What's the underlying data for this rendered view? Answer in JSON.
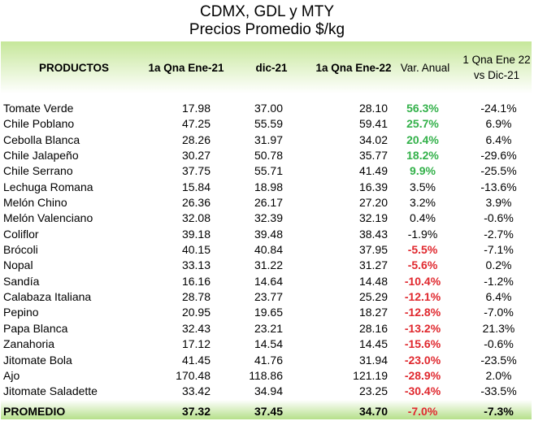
{
  "title": "CDMX, GDL y MTY",
  "subtitle": "Precios Promedio $/kg",
  "colors": {
    "positive": "#33b14a",
    "negative": "#e0282e",
    "header_green": "#c6e79a"
  },
  "headers": {
    "productos": "PRODUCTOS",
    "col1": "1a Qna Ene-21",
    "col2": "dic-21",
    "col3": "1a Qna Ene-22",
    "col4": "Var. Anual",
    "col5": "1 Qna Ene 22 vs Dic-21"
  },
  "rows": [
    {
      "name": "Tomate Verde",
      "a": "17.98",
      "b": "37.00",
      "c": "28.10",
      "va": "56.3%",
      "vq": "-24.1%",
      "sign": "pos"
    },
    {
      "name": "Chile Poblano",
      "a": "47.25",
      "b": "55.59",
      "c": "59.41",
      "va": "25.7%",
      "vq": "6.9%",
      "sign": "pos"
    },
    {
      "name": "Cebolla Blanca",
      "a": "28.26",
      "b": "31.97",
      "c": "34.02",
      "va": "20.4%",
      "vq": "6.4%",
      "sign": "pos"
    },
    {
      "name": "Chile Jalapeño",
      "a": "30.27",
      "b": "50.78",
      "c": "35.77",
      "va": "18.2%",
      "vq": "-29.6%",
      "sign": "pos"
    },
    {
      "name": "Chile Serrano",
      "a": "37.75",
      "b": "55.71",
      "c": "41.49",
      "va": "9.9%",
      "vq": "-25.5%",
      "sign": "pos"
    },
    {
      "name": "Lechuga Romana",
      "a": "15.84",
      "b": "18.98",
      "c": "16.39",
      "va": "3.5%",
      "vq": "-13.6%",
      "sign": "neu"
    },
    {
      "name": "Melón Chino",
      "a": "26.36",
      "b": "26.17",
      "c": "27.20",
      "va": "3.2%",
      "vq": "3.9%",
      "sign": "neu"
    },
    {
      "name": "Melón Valenciano",
      "a": "32.08",
      "b": "32.39",
      "c": "32.19",
      "va": "0.4%",
      "vq": "-0.6%",
      "sign": "neu"
    },
    {
      "name": "Coliflor",
      "a": "39.18",
      "b": "39.48",
      "c": "38.43",
      "va": "-1.9%",
      "vq": "-2.7%",
      "sign": "neu"
    },
    {
      "name": "Brócoli",
      "a": "40.15",
      "b": "40.84",
      "c": "37.95",
      "va": "-5.5%",
      "vq": "-7.1%",
      "sign": "neg"
    },
    {
      "name": "Nopal",
      "a": "33.13",
      "b": "31.22",
      "c": "31.27",
      "va": "-5.6%",
      "vq": "0.2%",
      "sign": "neg"
    },
    {
      "name": "Sandía",
      "a": "16.16",
      "b": "14.64",
      "c": "14.48",
      "va": "-10.4%",
      "vq": "-1.2%",
      "sign": "neg"
    },
    {
      "name": "Calabaza Italiana",
      "a": "28.78",
      "b": "23.77",
      "c": "25.29",
      "va": "-12.1%",
      "vq": "6.4%",
      "sign": "neg"
    },
    {
      "name": "Pepino",
      "a": "20.95",
      "b": "19.65",
      "c": "18.27",
      "va": "-12.8%",
      "vq": "-7.0%",
      "sign": "neg"
    },
    {
      "name": "Papa Blanca",
      "a": "32.43",
      "b": "23.21",
      "c": "28.16",
      "va": "-13.2%",
      "vq": "21.3%",
      "sign": "neg"
    },
    {
      "name": "Zanahoria",
      "a": "17.12",
      "b": "14.54",
      "c": "14.45",
      "va": "-15.6%",
      "vq": "-0.6%",
      "sign": "neg"
    },
    {
      "name": "Jitomate Bola",
      "a": "41.45",
      "b": "41.76",
      "c": "31.94",
      "va": "-23.0%",
      "vq": "-23.5%",
      "sign": "neg"
    },
    {
      "name": "Ajo",
      "a": "170.48",
      "b": "118.86",
      "c": "121.19",
      "va": "-28.9%",
      "vq": "2.0%",
      "sign": "neg"
    },
    {
      "name": "Jitomate Saladette",
      "a": "33.42",
      "b": "34.94",
      "c": "23.25",
      "va": "-30.4%",
      "vq": "-33.5%",
      "sign": "neg"
    }
  ],
  "footer": {
    "name": "PROMEDIO",
    "a": "37.32",
    "b": "37.45",
    "c": "34.70",
    "va": "-7.0%",
    "vq": "-7.3%"
  }
}
